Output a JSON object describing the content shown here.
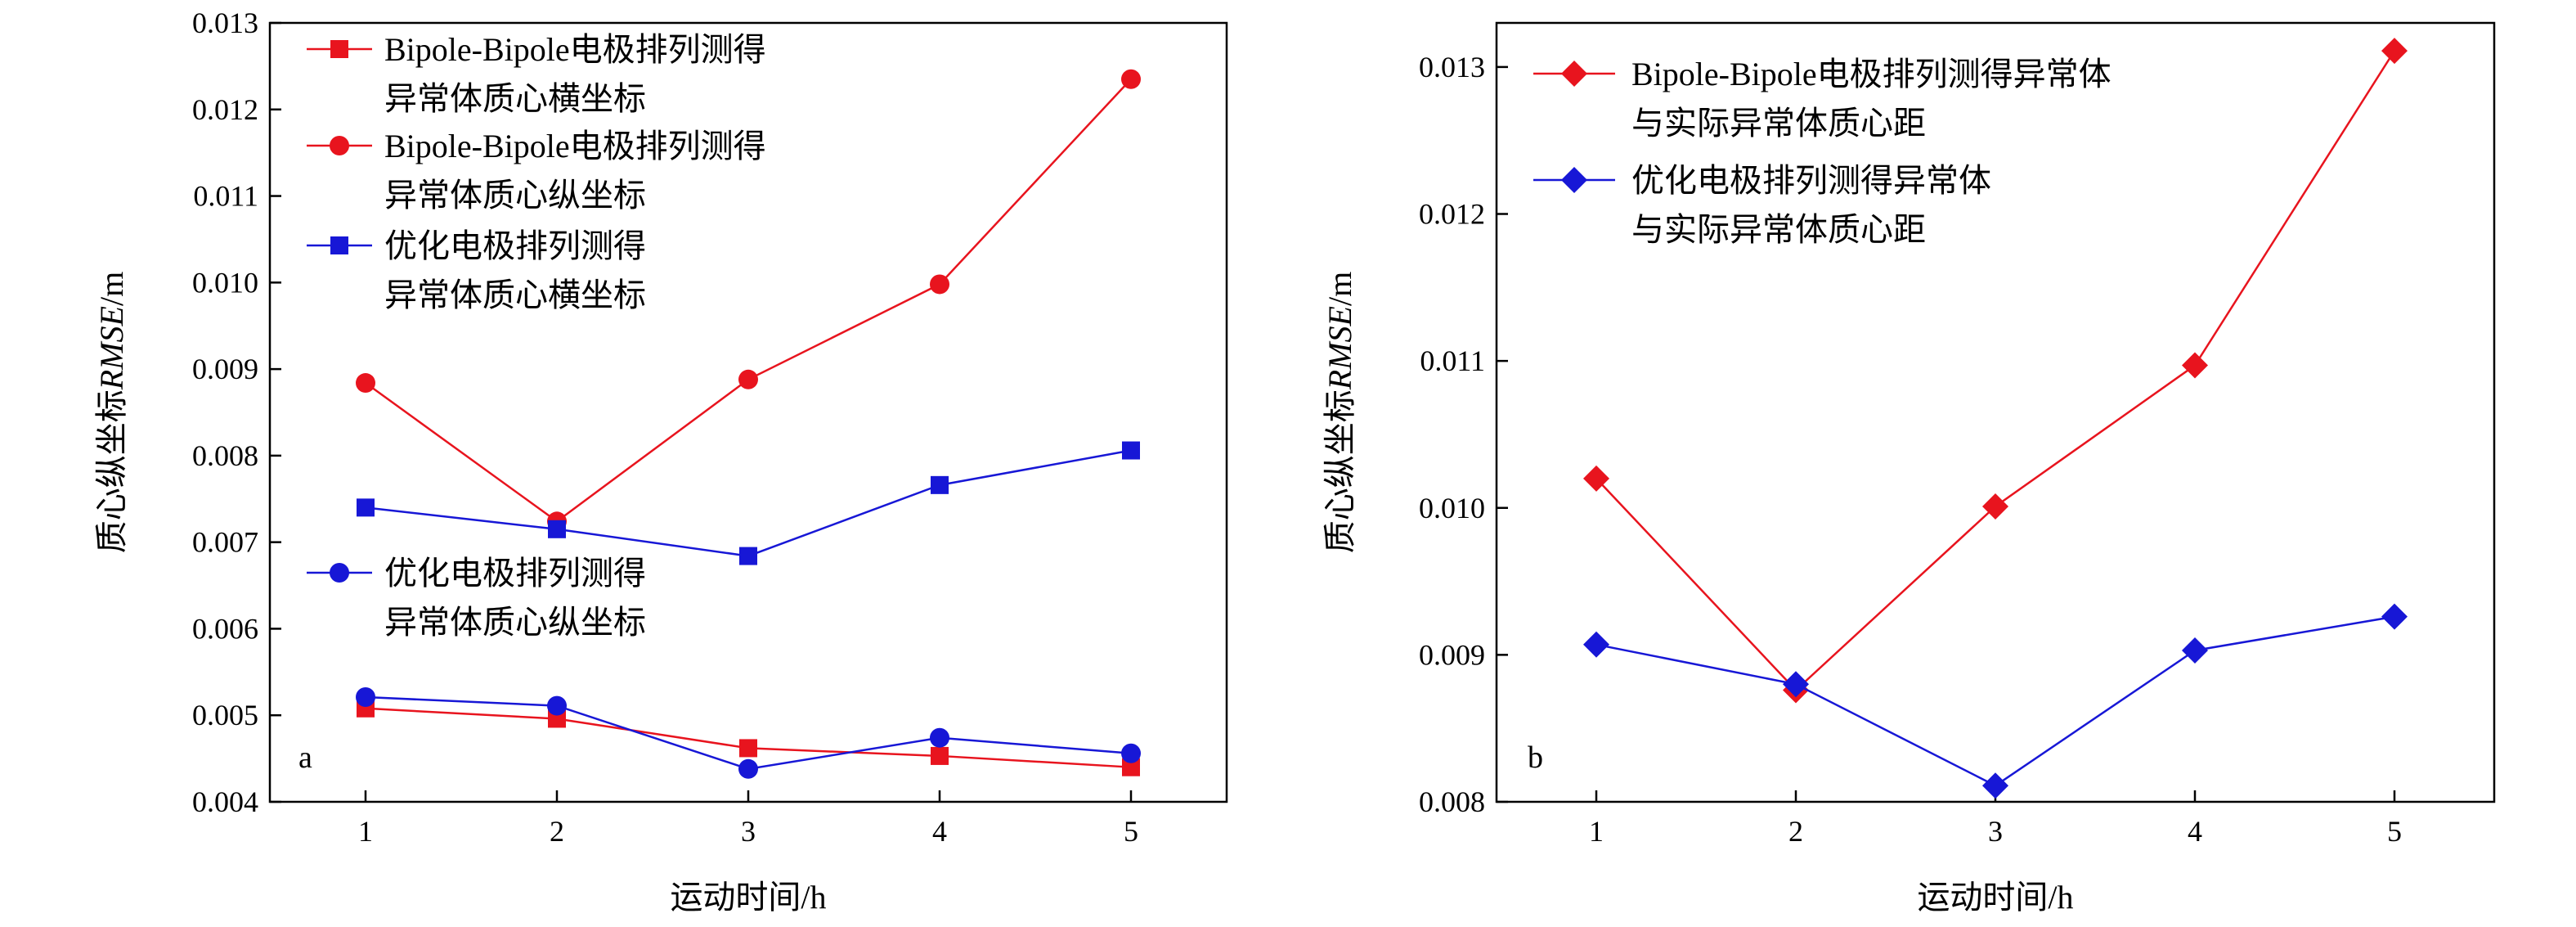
{
  "chart_data": [
    {
      "type": "line",
      "panel_label": "a",
      "x": [
        1,
        2,
        3,
        4,
        5
      ],
      "xlabel": "运动时间/h",
      "ylabel_prefix": "质心纵坐标",
      "ylabel_italic": "RMSE",
      "ylabel_suffix": "/m",
      "xlim": [
        0.5,
        5.5
      ],
      "ylim": [
        0.004,
        0.013
      ],
      "xticks": [
        "1",
        "2",
        "3",
        "4",
        "5"
      ],
      "yticks": [
        "0.004",
        "0.005",
        "0.006",
        "0.007",
        "0.008",
        "0.009",
        "0.010",
        "0.011",
        "0.012",
        "0.013"
      ],
      "series": [
        {
          "name": "Bipole-Bipole电极排列测得异常体质心横坐标",
          "legend_lines": [
            "Bipole-Bipole电极排列测得",
            "异常体质心横坐标"
          ],
          "color": "#e8141e",
          "marker": "square",
          "values": [
            0.00508,
            0.00496,
            0.00462,
            0.00453,
            0.0044
          ]
        },
        {
          "name": "Bipole-Bipole电极排列测得异常体质心纵坐标",
          "legend_lines": [
            "Bipole-Bipole电极排列测得",
            "异常体质心纵坐标"
          ],
          "color": "#e8141e",
          "marker": "circle",
          "values": [
            0.00884,
            0.00724,
            0.00888,
            0.00998,
            0.01235
          ]
        },
        {
          "name": "优化电极排列测得异常体质心横坐标",
          "legend_lines": [
            "优化电极排列测得",
            "异常体质心横坐标"
          ],
          "color": "#1717d6",
          "marker": "square",
          "values": [
            0.0074,
            0.00715,
            0.00684,
            0.00766,
            0.00806
          ]
        },
        {
          "name": "优化电极排列测得异常体质心纵坐标",
          "legend_lines": [
            "优化电极排列测得",
            "异常体质心纵坐标"
          ],
          "color": "#1717d6",
          "marker": "circle",
          "values": [
            0.00521,
            0.00511,
            0.00438,
            0.00474,
            0.00456
          ]
        }
      ]
    },
    {
      "type": "line",
      "panel_label": "b",
      "x": [
        1,
        2,
        3,
        4,
        5
      ],
      "xlabel": "运动时间/h",
      "ylabel_prefix": "质心纵坐标",
      "ylabel_italic": "RMSE",
      "ylabel_suffix": "/m",
      "xlim": [
        0.5,
        5.5
      ],
      "ylim": [
        0.008,
        0.0133
      ],
      "xticks": [
        "1",
        "2",
        "3",
        "4",
        "5"
      ],
      "yticks": [
        "0.008",
        "0.009",
        "0.010",
        "0.011",
        "0.012",
        "0.013"
      ],
      "series": [
        {
          "name": "Bipole-Bipole电极排列测得异常体与实际异常体质心距",
          "legend_lines": [
            "Bipole-Bipole电极排列测得异常体",
            "与实际异常体质心距"
          ],
          "color": "#e8141e",
          "marker": "diamond",
          "values": [
            0.0102,
            0.00876,
            0.01001,
            0.01097,
            0.01311
          ]
        },
        {
          "name": "优化电极排列测得异常体与实际异常体质心距",
          "legend_lines": [
            "优化电极排列测得异常体",
            "与实际异常体质心距"
          ],
          "color": "#1717d6",
          "marker": "diamond",
          "values": [
            0.00907,
            0.0088,
            0.00811,
            0.00903,
            0.00926
          ]
        }
      ]
    }
  ]
}
